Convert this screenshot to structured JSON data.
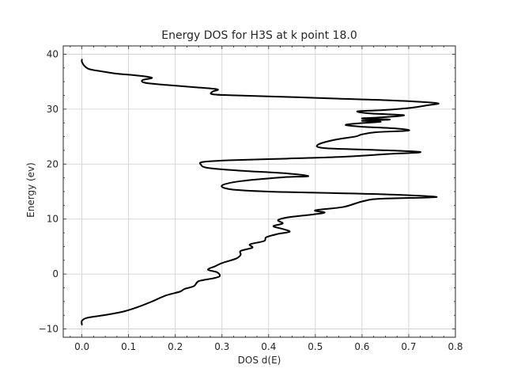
{
  "chart_data": {
    "type": "line",
    "title": "Energy DOS for H3S at k point 18.0",
    "xlabel": "DOS d(E)",
    "ylabel": "Energy (ev)",
    "xlim": [
      -0.04,
      0.8
    ],
    "ylim": [
      -11.5,
      41.5
    ],
    "xticks": [
      0.0,
      0.1,
      0.2,
      0.3,
      0.4,
      0.5,
      0.6,
      0.7,
      0.8
    ],
    "yticks": [
      -10,
      0,
      10,
      20,
      30,
      40
    ],
    "xtick_labels": [
      "0.0",
      "0.1",
      "0.2",
      "0.3",
      "0.4",
      "0.5",
      "0.6",
      "0.7",
      "0.8"
    ],
    "ytick_labels": [
      "−10",
      "0",
      "10",
      "20",
      "30",
      "40"
    ],
    "grid": true,
    "line_color": "#000000",
    "series": [
      {
        "points": [
          [
            0.0,
            -9.2
          ],
          [
            0.0,
            -8.5
          ],
          [
            0.01,
            -8.0
          ],
          [
            0.03,
            -7.7
          ],
          [
            0.06,
            -7.3
          ],
          [
            0.09,
            -6.8
          ],
          [
            0.12,
            -6.0
          ],
          [
            0.15,
            -5.0
          ],
          [
            0.18,
            -3.9
          ],
          [
            0.21,
            -3.2
          ],
          [
            0.22,
            -2.7
          ],
          [
            0.24,
            -2.2
          ],
          [
            0.25,
            -1.3
          ],
          [
            0.28,
            -0.8
          ],
          [
            0.295,
            -0.4
          ],
          [
            0.29,
            0.3
          ],
          [
            0.27,
            0.8
          ],
          [
            0.285,
            1.4
          ],
          [
            0.3,
            2.0
          ],
          [
            0.33,
            2.8
          ],
          [
            0.34,
            3.5
          ],
          [
            0.34,
            4.2
          ],
          [
            0.365,
            4.8
          ],
          [
            0.36,
            5.4
          ],
          [
            0.39,
            6.0
          ],
          [
            0.395,
            6.7
          ],
          [
            0.42,
            7.3
          ],
          [
            0.445,
            7.7
          ],
          [
            0.43,
            8.2
          ],
          [
            0.41,
            8.7
          ],
          [
            0.43,
            9.2
          ],
          [
            0.42,
            9.8
          ],
          [
            0.44,
            10.3
          ],
          [
            0.47,
            10.6
          ],
          [
            0.5,
            10.9
          ],
          [
            0.52,
            11.2
          ],
          [
            0.5,
            11.6
          ],
          [
            0.56,
            12.2
          ],
          [
            0.6,
            13.2
          ],
          [
            0.64,
            13.7
          ],
          [
            0.76,
            14.0
          ],
          [
            0.65,
            14.5
          ],
          [
            0.5,
            14.8
          ],
          [
            0.4,
            15.0
          ],
          [
            0.32,
            15.4
          ],
          [
            0.3,
            16.1
          ],
          [
            0.34,
            16.9
          ],
          [
            0.43,
            17.6
          ],
          [
            0.485,
            17.8
          ],
          [
            0.44,
            18.3
          ],
          [
            0.34,
            18.8
          ],
          [
            0.27,
            19.3
          ],
          [
            0.255,
            19.9
          ],
          [
            0.26,
            20.4
          ],
          [
            0.32,
            20.7
          ],
          [
            0.44,
            21.0
          ],
          [
            0.55,
            21.3
          ],
          [
            0.65,
            21.8
          ],
          [
            0.725,
            22.2
          ],
          [
            0.62,
            22.6
          ],
          [
            0.52,
            22.9
          ],
          [
            0.505,
            23.5
          ],
          [
            0.54,
            24.4
          ],
          [
            0.585,
            25.0
          ],
          [
            0.6,
            25.4
          ],
          [
            0.63,
            25.8
          ],
          [
            0.7,
            26.1
          ],
          [
            0.67,
            26.5
          ],
          [
            0.6,
            26.8
          ],
          [
            0.565,
            27.1
          ],
          [
            0.59,
            27.4
          ],
          [
            0.64,
            27.7
          ],
          [
            0.6,
            27.9
          ],
          [
            0.66,
            28.1
          ],
          [
            0.6,
            28.3
          ],
          [
            0.64,
            28.5
          ],
          [
            0.69,
            28.9
          ],
          [
            0.62,
            29.2
          ],
          [
            0.59,
            29.6
          ],
          [
            0.64,
            29.8
          ],
          [
            0.7,
            30.2
          ],
          [
            0.74,
            30.7
          ],
          [
            0.76,
            31.1
          ],
          [
            0.66,
            31.6
          ],
          [
            0.55,
            31.9
          ],
          [
            0.45,
            32.2
          ],
          [
            0.33,
            32.5
          ],
          [
            0.28,
            32.7
          ],
          [
            0.28,
            33.2
          ],
          [
            0.29,
            33.6
          ],
          [
            0.24,
            34.0
          ],
          [
            0.18,
            34.4
          ],
          [
            0.135,
            34.8
          ],
          [
            0.13,
            35.3
          ],
          [
            0.15,
            35.7
          ],
          [
            0.12,
            36.1
          ],
          [
            0.07,
            36.5
          ],
          [
            0.04,
            36.9
          ],
          [
            0.015,
            37.3
          ],
          [
            0.005,
            37.9
          ],
          [
            0.0,
            38.6
          ],
          [
            0.0,
            39.0
          ]
        ]
      }
    ]
  }
}
